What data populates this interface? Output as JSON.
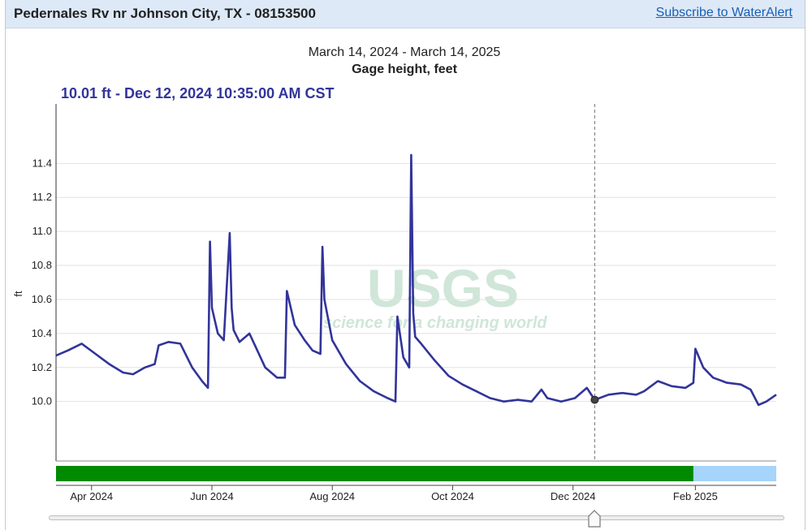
{
  "header": {
    "site_title": "Pedernales Rv nr Johnson City, TX - 08153500",
    "subscribe_label": "Subscribe to WaterAlert"
  },
  "watermark": {
    "logo": "USGS",
    "tagline": "science for a changing world"
  },
  "colors": {
    "series": "#32349a",
    "approved": "#008a00",
    "provisional": "#a6d4fb",
    "header_bg": "#dde9f7"
  },
  "chart_data": {
    "type": "line",
    "date_range": "March 14, 2024 - March 14, 2025",
    "parameter": "Gage height, feet",
    "readout": "10.01 ft - Dec 12, 2024 10:35:00 AM CST",
    "readout_x": "2024-12-12",
    "readout_y": 10.01,
    "ylabel": "ft",
    "ylim": [
      9.65,
      11.75
    ],
    "yticks": [
      10.0,
      10.2,
      10.4,
      10.6,
      10.8,
      11.0,
      11.2,
      11.4
    ],
    "ytick_labels": [
      "10.0",
      "10.2",
      "10.4",
      "10.6",
      "10.8",
      "11.0",
      "11.2",
      "11.4"
    ],
    "xlim": [
      "2024-03-14",
      "2025-03-14"
    ],
    "xticks": [
      "2024-04-01",
      "2024-06-01",
      "2024-08-01",
      "2024-10-01",
      "2024-12-01",
      "2025-02-01"
    ],
    "xtick_labels": [
      "Apr 2024",
      "Jun 2024",
      "Aug 2024",
      "Oct 2024",
      "Dec 2024",
      "Feb 2025"
    ],
    "grid": true,
    "approval_bar": [
      {
        "status": "approved",
        "start": "2024-03-14",
        "end": "2025-01-31"
      },
      {
        "status": "provisional",
        "start": "2025-01-31",
        "end": "2025-03-14"
      }
    ],
    "series": [
      {
        "x": [
          "2024-03-14",
          "2024-03-20",
          "2024-03-27",
          "2024-04-03",
          "2024-04-10",
          "2024-04-17",
          "2024-04-22",
          "2024-04-28",
          "2024-05-03",
          "2024-05-05",
          "2024-05-10",
          "2024-05-16",
          "2024-05-22",
          "2024-05-27",
          "2024-05-30",
          "2024-05-31",
          "2024-06-01",
          "2024-06-04",
          "2024-06-07",
          "2024-06-10",
          "2024-06-11",
          "2024-06-12",
          "2024-06-15",
          "2024-06-20",
          "2024-06-24",
          "2024-06-28",
          "2024-07-04",
          "2024-07-08",
          "2024-07-09",
          "2024-07-13",
          "2024-07-18",
          "2024-07-22",
          "2024-07-26",
          "2024-07-27",
          "2024-07-28",
          "2024-08-01",
          "2024-08-08",
          "2024-08-15",
          "2024-08-22",
          "2024-08-29",
          "2024-09-02",
          "2024-09-03",
          "2024-09-06",
          "2024-09-09",
          "2024-09-10",
          "2024-09-11",
          "2024-09-12",
          "2024-09-15",
          "2024-09-22",
          "2024-09-29",
          "2024-10-06",
          "2024-10-13",
          "2024-10-20",
          "2024-10-27",
          "2024-11-03",
          "2024-11-10",
          "2024-11-15",
          "2024-11-18",
          "2024-11-25",
          "2024-12-02",
          "2024-12-08",
          "2024-12-12",
          "2024-12-19",
          "2024-12-26",
          "2025-01-02",
          "2025-01-06",
          "2025-01-13",
          "2025-01-20",
          "2025-01-27",
          "2025-01-31",
          "2025-02-01",
          "2025-02-05",
          "2025-02-10",
          "2025-02-17",
          "2025-02-24",
          "2025-03-01",
          "2025-03-05",
          "2025-03-09",
          "2025-03-14"
        ],
        "y": [
          10.27,
          10.3,
          10.34,
          10.28,
          10.22,
          10.17,
          10.16,
          10.2,
          10.22,
          10.33,
          10.35,
          10.34,
          10.2,
          10.12,
          10.08,
          10.94,
          10.55,
          10.4,
          10.36,
          10.99,
          10.55,
          10.42,
          10.35,
          10.4,
          10.3,
          10.2,
          10.14,
          10.14,
          10.65,
          10.45,
          10.36,
          10.3,
          10.28,
          10.91,
          10.6,
          10.36,
          10.22,
          10.12,
          10.06,
          10.02,
          10.0,
          10.5,
          10.26,
          10.2,
          11.45,
          10.52,
          10.38,
          10.34,
          10.24,
          10.15,
          10.1,
          10.06,
          10.02,
          10.0,
          10.01,
          10.0,
          10.07,
          10.02,
          10.0,
          10.02,
          10.08,
          10.01,
          10.04,
          10.05,
          10.04,
          10.06,
          10.12,
          10.09,
          10.08,
          10.11,
          10.31,
          10.2,
          10.14,
          10.11,
          10.1,
          10.07,
          9.98,
          10.0,
          10.04
        ]
      }
    ]
  }
}
